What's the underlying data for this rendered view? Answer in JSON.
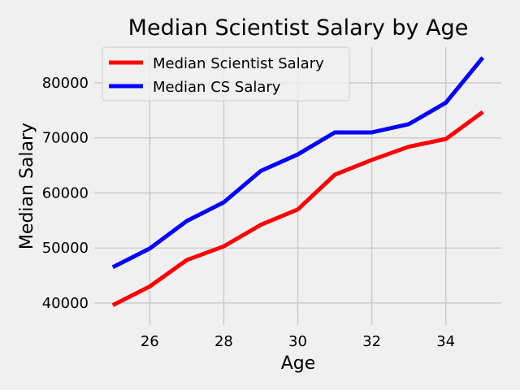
{
  "chart_data": {
    "type": "line",
    "title": "Median Scientist Salary by Age",
    "xlabel": "Age",
    "ylabel": "Median Salary",
    "x": [
      25,
      26,
      27,
      28,
      29,
      30,
      31,
      32,
      33,
      34,
      35
    ],
    "xlim": [
      24.5,
      35.5
    ],
    "ylim": [
      36000,
      86500
    ],
    "xticks": [
      26,
      28,
      30,
      32,
      34
    ],
    "yticks": [
      40000,
      50000,
      60000,
      70000,
      80000
    ],
    "grid": true,
    "legend_position": "top-left",
    "series": [
      {
        "name": "Median Scientist Salary",
        "color": "#ff0000",
        "values": [
          39600,
          43000,
          47800,
          50300,
          54200,
          57000,
          63300,
          66000,
          68400,
          69800,
          74700
        ]
      },
      {
        "name": "Median CS Salary",
        "color": "#0000ff",
        "values": [
          46500,
          49900,
          54900,
          58300,
          64000,
          67000,
          71000,
          71000,
          72500,
          76400,
          84600
        ]
      }
    ]
  }
}
